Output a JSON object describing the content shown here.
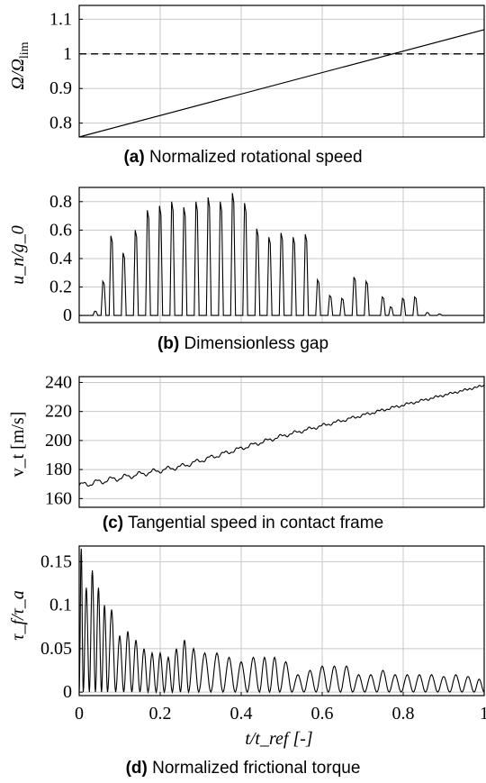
{
  "chart_data": [
    {
      "type": "line",
      "panel": "(a)",
      "caption": "Normalized rotational speed",
      "ylabel": "Ω/Ω_lim",
      "ylabel_main": "Ω/Ω",
      "ylabel_sub": "lim",
      "xlim": [
        0,
        1
      ],
      "ylim": [
        0.76,
        1.14
      ],
      "yticks": [
        0.8,
        0.9,
        1,
        1.1
      ],
      "ytick_labels": [
        "0.8",
        "0.9",
        "1",
        "1.1"
      ],
      "series": [
        {
          "x": [
            0,
            1
          ],
          "y": [
            0.76,
            1.07
          ]
        }
      ],
      "reference_line": {
        "y": 1,
        "style": "dashed"
      },
      "grid": true
    },
    {
      "type": "line",
      "panel": "(b)",
      "caption": "Dimensionless gap",
      "ylabel": "u_n/g_0",
      "xlim": [
        0,
        1
      ],
      "ylim": [
        -0.05,
        0.9
      ],
      "yticks": [
        0,
        0.2,
        0.4,
        0.6,
        0.8
      ],
      "ytick_labels": [
        "0",
        "0.2",
        "0.4",
        "0.6",
        "0.8"
      ],
      "peaks": {
        "x": [
          0.04,
          0.06,
          0.08,
          0.11,
          0.14,
          0.17,
          0.2,
          0.23,
          0.26,
          0.29,
          0.32,
          0.35,
          0.38,
          0.41,
          0.44,
          0.47,
          0.5,
          0.53,
          0.56,
          0.59,
          0.62,
          0.65,
          0.68,
          0.71,
          0.75,
          0.77,
          0.8,
          0.83,
          0.86,
          0.89,
          0.92,
          0.95,
          1.0
        ],
        "y": [
          0.03,
          0.24,
          0.56,
          0.44,
          0.6,
          0.74,
          0.77,
          0.8,
          0.76,
          0.8,
          0.83,
          0.8,
          0.86,
          0.79,
          0.61,
          0.55,
          0.58,
          0.55,
          0.57,
          0.25,
          0.14,
          0.12,
          0.27,
          0.24,
          0.13,
          0.06,
          0.12,
          0.13,
          0.02,
          0.01,
          0.0,
          0.0,
          0.0
        ]
      },
      "grid": true
    },
    {
      "type": "line",
      "panel": "(c)",
      "caption": "Tangential speed in contact frame",
      "ylabel": "v_t [m/s]",
      "xlim": [
        0,
        1
      ],
      "ylim": [
        154,
        244
      ],
      "yticks": [
        160,
        180,
        200,
        220,
        240
      ],
      "ytick_labels": [
        "160",
        "180",
        "200",
        "220",
        "240"
      ],
      "series": [
        {
          "x": [
            0,
            0.25,
            0.5,
            0.75,
            1
          ],
          "y": [
            169,
            182,
            203,
            221,
            238
          ]
        }
      ],
      "grid": true
    },
    {
      "type": "line",
      "panel": "(d)",
      "caption": "Normalized frictional torque",
      "ylabel": "τ_f/τ_a",
      "xlabel": "t/t_ref [-]",
      "xlim": [
        0,
        1
      ],
      "ylim": [
        -0.004,
        0.168
      ],
      "xticks": [
        0,
        0.2,
        0.4,
        0.6,
        0.8,
        1
      ],
      "xtick_labels": [
        "0",
        "0.2",
        "0.4",
        "0.6",
        "0.8",
        "1"
      ],
      "yticks": [
        0,
        0.05,
        0.1,
        0.15
      ],
      "ytick_labels": [
        "0",
        "0.05",
        "0.1",
        "0.15"
      ],
      "peaks": {
        "x": [
          0.0,
          0.02,
          0.03,
          0.05,
          0.06,
          0.08,
          0.1,
          0.12,
          0.14,
          0.16,
          0.18,
          0.2,
          0.22,
          0.24,
          0.26,
          0.28,
          0.31,
          0.34,
          0.37,
          0.4,
          0.43,
          0.46,
          0.48,
          0.51,
          0.54,
          0.57,
          0.6,
          0.63,
          0.66,
          0.69,
          0.72,
          0.75,
          0.78,
          0.81,
          0.84,
          0.87,
          0.9,
          0.93,
          0.96,
          0.99
        ],
        "y": [
          0.165,
          0.12,
          0.14,
          0.12,
          0.1,
          0.095,
          0.065,
          0.07,
          0.06,
          0.05,
          0.045,
          0.045,
          0.04,
          0.05,
          0.06,
          0.05,
          0.045,
          0.045,
          0.04,
          0.035,
          0.04,
          0.04,
          0.04,
          0.035,
          0.02,
          0.025,
          0.03,
          0.03,
          0.03,
          0.02,
          0.02,
          0.025,
          0.02,
          0.02,
          0.02,
          0.02,
          0.018,
          0.02,
          0.018,
          0.015
        ]
      },
      "grid": true
    }
  ]
}
